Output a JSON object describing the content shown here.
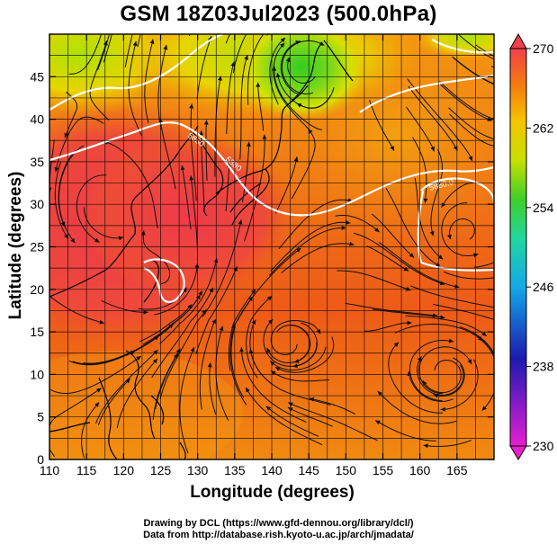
{
  "title": "GSM 18Z03Jul2023 (500.0hPa)",
  "axes": {
    "xlabel": "Longitude (degrees)",
    "ylabel": "Latitude (degrees)",
    "xticks": [
      "110",
      "115",
      "120",
      "125",
      "130",
      "135",
      "140",
      "145",
      "150",
      "155",
      "160",
      "165"
    ],
    "yticks": [
      "0",
      "5",
      "10",
      "15",
      "20",
      "25",
      "30",
      "35",
      "40",
      "45"
    ]
  },
  "colorbar": {
    "ticks": [
      "230",
      "238",
      "246",
      "254",
      "262",
      "270"
    ]
  },
  "credits": {
    "line1": "Drawing by DCL (https://www.gfd-dennou.org/library/dcl/)",
    "line2": "Data from http://database.rish.kyoto-u.ac.jp/arch/jmadata/"
  },
  "contour_labels": [
    "5880",
    "5880",
    "5880.0"
  ],
  "chart_data": {
    "type": "heatmap",
    "title": "GSM 18Z03Jul2023 (500.0hPa)",
    "xlabel": "Longitude (degrees)",
    "ylabel": "Latitude (degrees)",
    "xlim": [
      110,
      170
    ],
    "ylim": [
      0,
      50
    ],
    "color_range": [
      230,
      270
    ],
    "grid": true,
    "colors": {
      "low": "#e81fcf",
      "mid_low": "#1a1ab0",
      "mid": "#14a9e8",
      "mid_high": "#3fcf2a",
      "high_mid": "#f6a000",
      "high": "#f0404a"
    }
  }
}
